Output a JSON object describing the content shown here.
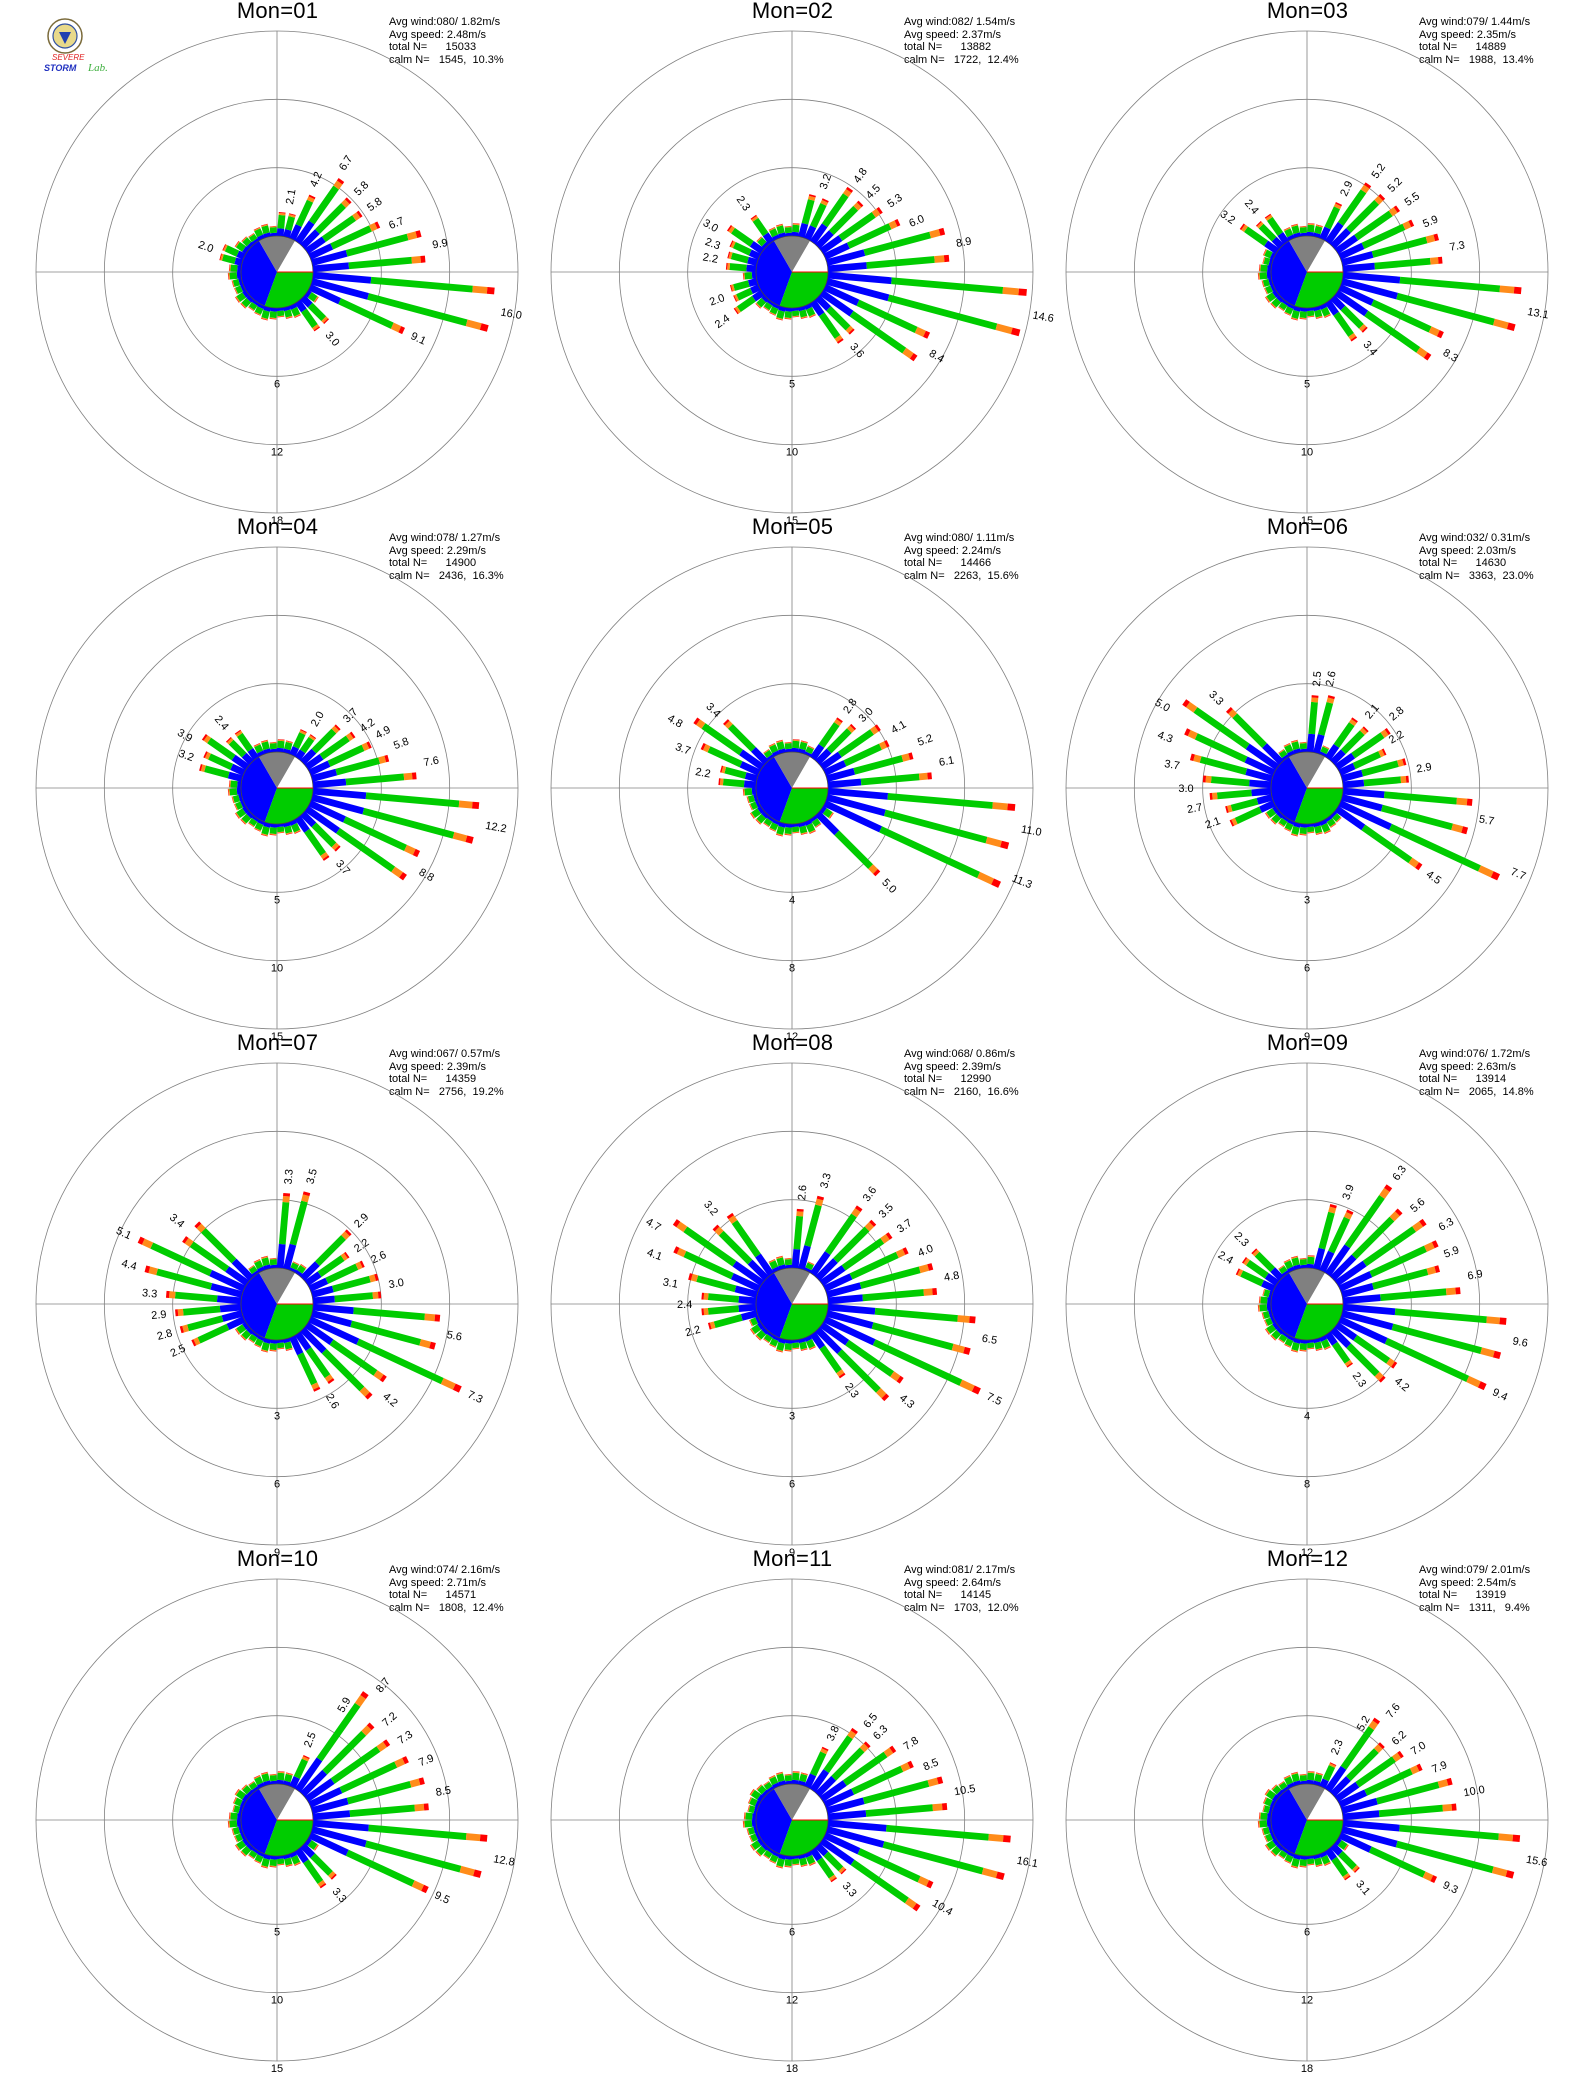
{
  "colors": {
    "seg1": "#0000ff",
    "seg2": "#00cc00",
    "seg3": "#ff8c1a",
    "seg4": "#ff0000",
    "calm": "#808080",
    "axis": "#808080"
  },
  "logo": {
    "icon": "storm-lab-logo",
    "line1": "SEVERE",
    "line2": "STORM",
    "line3": "Lab."
  },
  "chart_data": [
    {
      "type": "wind-rose",
      "title": "Mon=01",
      "stats": [
        "Avg wind:080/ 1.82m/s",
        "Avg speed: 2.48m/s",
        "total N=      15033",
        "calm N=   1545,  10.3%"
      ],
      "rings": [
        6,
        12,
        18
      ],
      "max": 18,
      "labels": [
        {
          "dir": 290,
          "v": 2.0
        },
        {
          "dir": 10,
          "v": 2.1
        },
        {
          "dir": 22.5,
          "v": 4.2
        },
        {
          "dir": 32,
          "v": 6.7
        },
        {
          "dir": 45,
          "v": 5.8
        },
        {
          "dir": 55,
          "v": 5.8
        },
        {
          "dir": 67.5,
          "v": 6.7
        },
        {
          "dir": 80,
          "v": 9.9
        },
        {
          "dir": 100,
          "v": 16.0
        },
        {
          "dir": 115,
          "v": 9.1
        },
        {
          "dir": 140,
          "v": 3.0
        }
      ]
    },
    {
      "type": "wind-rose",
      "title": "Mon=02",
      "stats": [
        "Avg wind:082/ 1.54m/s",
        "Avg speed: 2.37m/s",
        "total N=      13882",
        "calm N=   1722,  12.4%"
      ],
      "rings": [
        5,
        10,
        15
      ],
      "max": 15,
      "labels": [
        {
          "dir": 280,
          "v": 2.2
        },
        {
          "dir": 290,
          "v": 2.3
        },
        {
          "dir": 300,
          "v": 3.0
        },
        {
          "dir": 325,
          "v": 2.3
        },
        {
          "dir": 235,
          "v": 2.4
        },
        {
          "dir": 250,
          "v": 2.0
        },
        {
          "dir": 20,
          "v": 3.2
        },
        {
          "dir": 35,
          "v": 4.8
        },
        {
          "dir": 45,
          "v": 4.5
        },
        {
          "dir": 55,
          "v": 5.3
        },
        {
          "dir": 67.5,
          "v": 6.0
        },
        {
          "dir": 80,
          "v": 8.9
        },
        {
          "dir": 100,
          "v": 14.6
        },
        {
          "dir": 120,
          "v": 8.4
        },
        {
          "dir": 140,
          "v": 3.6
        }
      ]
    },
    {
      "type": "wind-rose",
      "title": "Mon=03",
      "stats": [
        "Avg wind:079/ 1.44m/s",
        "Avg speed: 2.35m/s",
        "total N=      14889",
        "calm N=   1988,  13.4%"
      ],
      "rings": [
        5,
        10,
        15
      ],
      "max": 15,
      "labels": [
        {
          "dir": 305,
          "v": 3.2
        },
        {
          "dir": 320,
          "v": 2.4
        },
        {
          "dir": 25,
          "v": 2.9
        },
        {
          "dir": 35,
          "v": 5.2
        },
        {
          "dir": 45,
          "v": 5.2
        },
        {
          "dir": 55,
          "v": 5.5
        },
        {
          "dir": 67.5,
          "v": 5.9
        },
        {
          "dir": 80,
          "v": 7.3
        },
        {
          "dir": 100,
          "v": 13.1
        },
        {
          "dir": 120,
          "v": 8.3
        },
        {
          "dir": 140,
          "v": 3.4
        }
      ]
    },
    {
      "type": "wind-rose",
      "title": "Mon=04",
      "stats": [
        "Avg wind:078/ 1.27m/s",
        "Avg speed: 2.29m/s",
        "total N=      14900",
        "calm N=   2436,  16.3%"
      ],
      "rings": [
        5,
        10,
        15
      ],
      "max": 15,
      "labels": [
        {
          "dir": 290,
          "v": 3.2
        },
        {
          "dir": 300,
          "v": 3.9
        },
        {
          "dir": 320,
          "v": 2.4
        },
        {
          "dir": 30,
          "v": 2.0
        },
        {
          "dir": 45,
          "v": 3.7
        },
        {
          "dir": 55,
          "v": 4.2
        },
        {
          "dir": 62,
          "v": 4.9
        },
        {
          "dir": 70,
          "v": 5.8
        },
        {
          "dir": 80,
          "v": 7.6
        },
        {
          "dir": 100,
          "v": 12.2
        },
        {
          "dir": 120,
          "v": 8.8
        },
        {
          "dir": 140,
          "v": 3.7
        }
      ]
    },
    {
      "type": "wind-rose",
      "title": "Mon=05",
      "stats": [
        "Avg wind:080/ 1.11m/s",
        "Avg speed: 2.24m/s",
        "total N=      14466",
        "calm N=   2263,  15.6%"
      ],
      "rings": [
        4,
        8,
        12
      ],
      "max": 12,
      "labels": [
        {
          "dir": 300,
          "v": 4.8
        },
        {
          "dir": 315,
          "v": 3.4
        },
        {
          "dir": 290,
          "v": 3.7
        },
        {
          "dir": 280,
          "v": 2.2
        },
        {
          "dir": 35,
          "v": 2.8
        },
        {
          "dir": 45,
          "v": 3.0
        },
        {
          "dir": 60,
          "v": 4.1
        },
        {
          "dir": 70,
          "v": 5.2
        },
        {
          "dir": 80,
          "v": 6.1
        },
        {
          "dir": 100,
          "v": 11.0
        },
        {
          "dir": 112,
          "v": 11.3
        },
        {
          "dir": 135,
          "v": 5.0
        }
      ]
    },
    {
      "type": "wind-rose",
      "title": "Mon=06",
      "stats": [
        "Avg wind:032/ 0.31m/s",
        "Avg speed: 2.03m/s",
        "total N=      14630",
        "calm N=   3363,  23.0%"
      ],
      "rings": [
        3,
        6,
        9
      ],
      "max": 9,
      "labels": [
        {
          "dir": 300,
          "v": 5.0
        },
        {
          "dir": 315,
          "v": 3.3
        },
        {
          "dir": 290,
          "v": 4.3
        },
        {
          "dir": 280,
          "v": 3.7
        },
        {
          "dir": 270,
          "v": 3.0
        },
        {
          "dir": 260,
          "v": 2.7
        },
        {
          "dir": 250,
          "v": 2.1
        },
        {
          "dir": 5,
          "v": 2.5
        },
        {
          "dir": 12,
          "v": 2.6
        },
        {
          "dir": 40,
          "v": 2.1
        },
        {
          "dir": 50,
          "v": 2.8
        },
        {
          "dir": 60,
          "v": 2.2
        },
        {
          "dir": 80,
          "v": 2.9
        },
        {
          "dir": 100,
          "v": 5.7
        },
        {
          "dir": 112,
          "v": 7.7
        },
        {
          "dir": 125,
          "v": 4.5
        }
      ]
    },
    {
      "type": "wind-rose",
      "title": "Mon=07",
      "stats": [
        "Avg wind:067/ 0.57m/s",
        "Avg speed: 2.39m/s",
        "total N=      14359",
        "calm N=   2756,  19.2%"
      ],
      "rings": [
        3,
        6,
        9
      ],
      "max": 9,
      "labels": [
        {
          "dir": 295,
          "v": 5.1
        },
        {
          "dir": 310,
          "v": 3.4
        },
        {
          "dir": 285,
          "v": 4.4
        },
        {
          "dir": 275,
          "v": 3.3
        },
        {
          "dir": 265,
          "v": 2.9
        },
        {
          "dir": 255,
          "v": 2.8
        },
        {
          "dir": 245,
          "v": 2.5
        },
        {
          "dir": 5,
          "v": 3.3
        },
        {
          "dir": 15,
          "v": 3.5
        },
        {
          "dir": 45,
          "v": 2.9
        },
        {
          "dir": 55,
          "v": 2.2
        },
        {
          "dir": 65,
          "v": 2.6
        },
        {
          "dir": 80,
          "v": 3.0
        },
        {
          "dir": 100,
          "v": 5.6
        },
        {
          "dir": 115,
          "v": 7.3
        },
        {
          "dir": 130,
          "v": 4.2
        },
        {
          "dir": 150,
          "v": 2.6
        }
      ]
    },
    {
      "type": "wind-rose",
      "title": "Mon=08",
      "stats": [
        "Avg wind:068/ 0.86m/s",
        "Avg speed: 2.39m/s",
        "total N=      12990",
        "calm N=   2160,  16.6%"
      ],
      "rings": [
        3,
        6,
        9
      ],
      "max": 9,
      "labels": [
        {
          "dir": 300,
          "v": 4.7
        },
        {
          "dir": 320,
          "v": 3.2
        },
        {
          "dir": 290,
          "v": 4.1
        },
        {
          "dir": 280,
          "v": 3.1
        },
        {
          "dir": 270,
          "v": 2.4
        },
        {
          "dir": 255,
          "v": 2.2
        },
        {
          "dir": 5,
          "v": 2.6
        },
        {
          "dir": 15,
          "v": 3.3
        },
        {
          "dir": 35,
          "v": 3.6
        },
        {
          "dir": 45,
          "v": 3.5
        },
        {
          "dir": 55,
          "v": 3.7
        },
        {
          "dir": 68,
          "v": 4.0
        },
        {
          "dir": 80,
          "v": 4.8
        },
        {
          "dir": 100,
          "v": 6.5
        },
        {
          "dir": 115,
          "v": 7.5
        },
        {
          "dir": 130,
          "v": 4.3
        },
        {
          "dir": 145,
          "v": 2.3
        }
      ]
    },
    {
      "type": "wind-rose",
      "title": "Mon=09",
      "stats": [
        "Avg wind:076/ 1.72m/s",
        "Avg speed: 2.63m/s",
        "total N=      13914",
        "calm N=   2065,  14.8%"
      ],
      "rings": [
        4,
        8,
        12
      ],
      "max": 12,
      "labels": [
        {
          "dir": 300,
          "v": 2.4
        },
        {
          "dir": 315,
          "v": 2.3
        },
        {
          "dir": 20,
          "v": 3.9
        },
        {
          "dir": 35,
          "v": 6.3
        },
        {
          "dir": 48,
          "v": 5.6
        },
        {
          "dir": 60,
          "v": 6.3
        },
        {
          "dir": 70,
          "v": 5.9
        },
        {
          "dir": 80,
          "v": 6.9
        },
        {
          "dir": 100,
          "v": 9.6
        },
        {
          "dir": 115,
          "v": 9.4
        },
        {
          "dir": 130,
          "v": 4.2
        },
        {
          "dir": 145,
          "v": 2.3
        }
      ]
    },
    {
      "type": "wind-rose",
      "title": "Mon=10",
      "stats": [
        "Avg wind:074/ 2.16m/s",
        "Avg speed: 2.71m/s",
        "total N=      14571",
        "calm N=   1808,  12.4%"
      ],
      "rings": [
        5,
        10,
        15
      ],
      "max": 15,
      "labels": [
        {
          "dir": 22,
          "v": 2.5
        },
        {
          "dir": 30,
          "v": 5.9
        },
        {
          "dir": 38,
          "v": 8.7
        },
        {
          "dir": 48,
          "v": 7.2
        },
        {
          "dir": 57,
          "v": 7.3
        },
        {
          "dir": 68,
          "v": 7.9
        },
        {
          "dir": 80,
          "v": 8.5
        },
        {
          "dir": 100,
          "v": 12.8
        },
        {
          "dir": 115,
          "v": 9.5
        },
        {
          "dir": 140,
          "v": 3.3
        }
      ]
    },
    {
      "type": "wind-rose",
      "title": "Mon=11",
      "stats": [
        "Avg wind:081/ 2.17m/s",
        "Avg speed: 2.64m/s",
        "total N=      14145",
        "calm N=   1703,  12.0%"
      ],
      "rings": [
        6,
        12,
        18
      ],
      "max": 18,
      "labels": [
        {
          "dir": 25,
          "v": 3.8
        },
        {
          "dir": 38,
          "v": 6.5
        },
        {
          "dir": 45,
          "v": 6.3
        },
        {
          "dir": 57,
          "v": 7.8
        },
        {
          "dir": 68,
          "v": 8.5
        },
        {
          "dir": 80,
          "v": 10.5
        },
        {
          "dir": 100,
          "v": 16.1
        },
        {
          "dir": 120,
          "v": 10.4
        },
        {
          "dir": 140,
          "v": 3.3
        }
      ]
    },
    {
      "type": "wind-rose",
      "title": "Mon=12",
      "stats": [
        "Avg wind:079/ 2.01m/s",
        "Avg speed: 2.54m/s",
        "total N=      13919",
        "calm N=   1311,   9.4%"
      ],
      "rings": [
        6,
        12,
        18
      ],
      "max": 18,
      "labels": [
        {
          "dir": 22,
          "v": 2.3
        },
        {
          "dir": 30,
          "v": 5.2
        },
        {
          "dir": 38,
          "v": 7.6
        },
        {
          "dir": 48,
          "v": 6.2
        },
        {
          "dir": 57,
          "v": 7.0
        },
        {
          "dir": 68,
          "v": 7.9
        },
        {
          "dir": 80,
          "v": 10.0
        },
        {
          "dir": 100,
          "v": 15.6
        },
        {
          "dir": 115,
          "v": 9.3
        },
        {
          "dir": 140,
          "v": 3.1
        }
      ]
    }
  ]
}
